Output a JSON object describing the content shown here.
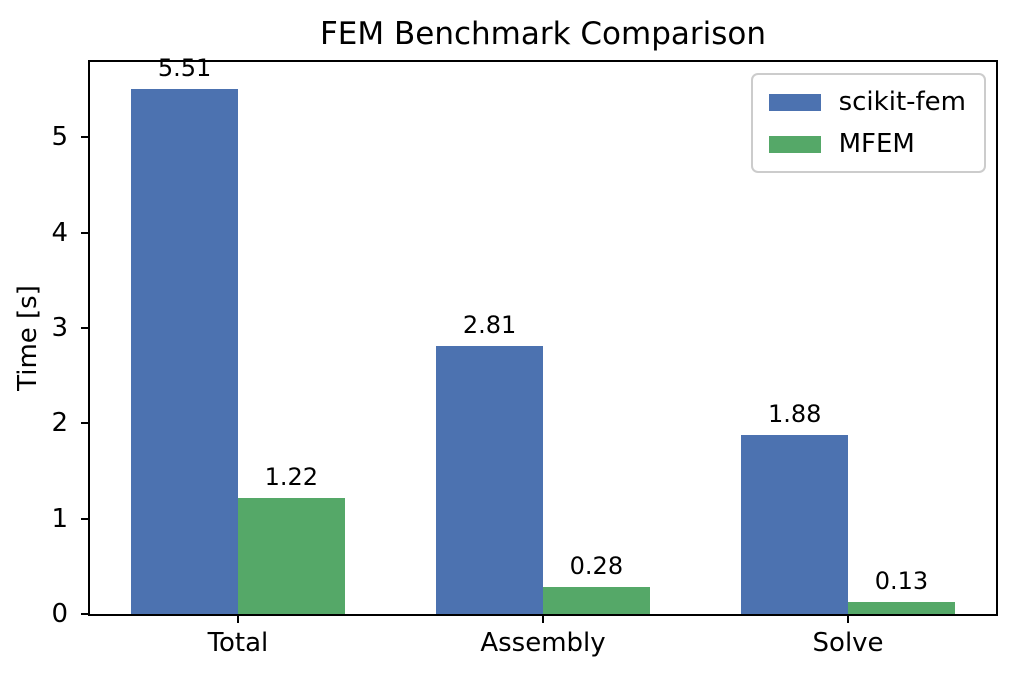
{
  "chart_data": {
    "type": "bar",
    "title": "FEM Benchmark Comparison",
    "xlabel": "",
    "ylabel": "Time [s]",
    "categories": [
      "Total",
      "Assembly",
      "Solve"
    ],
    "series": [
      {
        "name": "scikit-fem",
        "color": "#4C72B0",
        "values": [
          5.51,
          2.81,
          1.88
        ]
      },
      {
        "name": "MFEM",
        "color": "#55A868",
        "values": [
          1.22,
          0.28,
          0.13
        ]
      }
    ],
    "bar_value_labels": [
      [
        "5.51",
        "2.81",
        "1.88"
      ],
      [
        "1.22",
        "0.28",
        "0.13"
      ]
    ],
    "y_ticks": [
      0,
      1,
      2,
      3,
      4,
      5
    ],
    "ylim": [
      0,
      5.79
    ],
    "grid": false,
    "legend_position": "upper right",
    "colors": {
      "spine": "#000000",
      "text": "#000000",
      "legend_edge": "#cccccc",
      "background": "#ffffff"
    }
  }
}
